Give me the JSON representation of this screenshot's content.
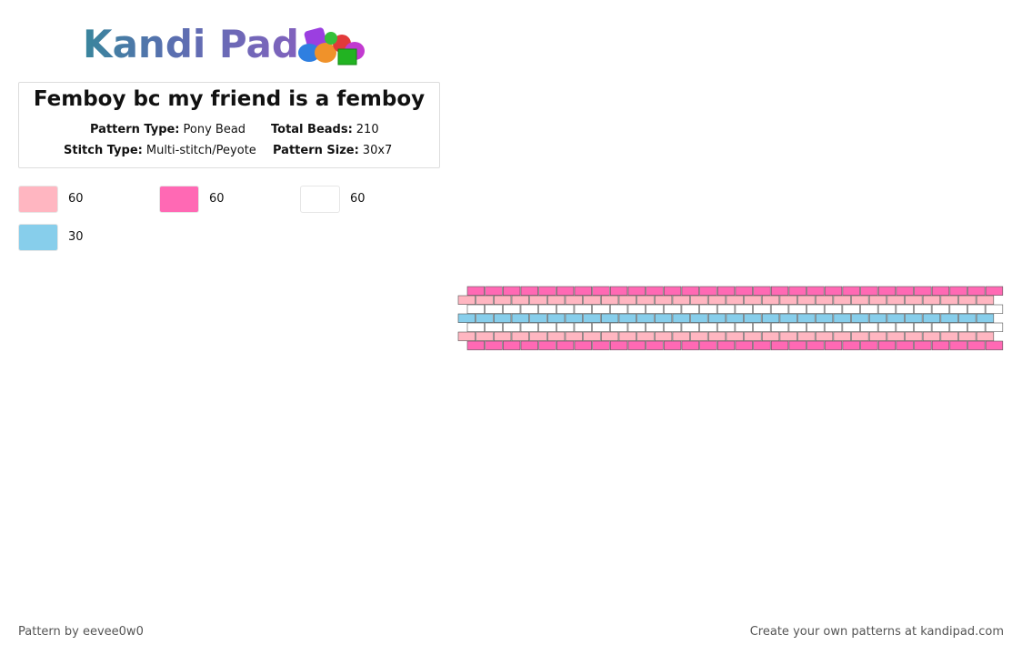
{
  "logo": "Kandi Pad",
  "title": "Femboy bc my friend is a femboy",
  "fields": [
    {
      "label": "Pattern Type:",
      "value": "Pony Bead"
    },
    {
      "label": "Total Beads:",
      "value": 210
    },
    {
      "label": "Stitch Type:",
      "value": "Multi-stitch/Peyote"
    },
    {
      "label": "Pattern Size:",
      "value": "30x7"
    }
  ],
  "colors": [
    {
      "color": "#ffb6c1",
      "count": 60
    },
    {
      "color": "#ff69b4",
      "count": 60
    },
    {
      "color": "#ffffff",
      "count": 60
    },
    {
      "color": "#87ceeb",
      "count": 30
    }
  ],
  "grid": {
    "columns": 30,
    "row_colors": [
      1,
      0,
      2,
      3,
      2,
      0,
      1
    ]
  },
  "footer": {
    "left": "Pattern by eevee0w0",
    "right": "Create your own patterns at kandipad.com"
  }
}
